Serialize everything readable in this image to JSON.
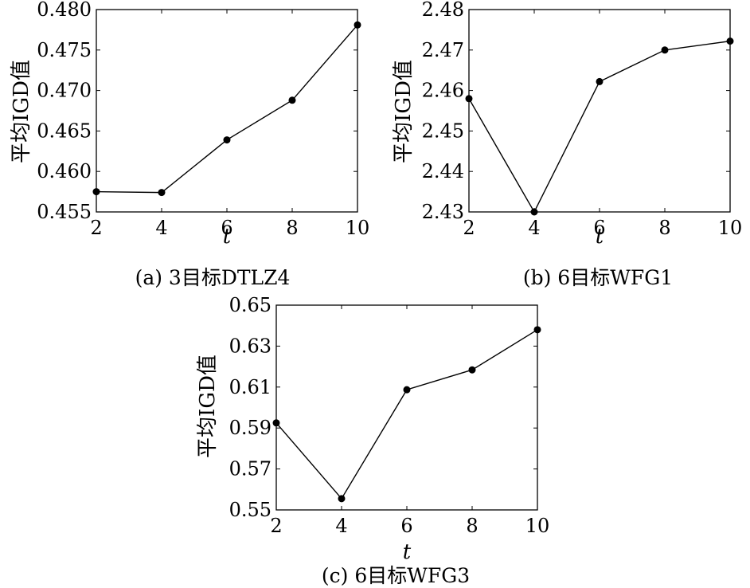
{
  "chart_data": [
    {
      "type": "line",
      "caption": "(a) 3目标DTLZ4",
      "xlabel": "t",
      "ylabel": "平均IGD值",
      "x": [
        2,
        4,
        6,
        8,
        10
      ],
      "series": [
        {
          "values": [
            0.4575,
            0.4574,
            0.4639,
            0.4688,
            0.4781
          ]
        }
      ],
      "xlim": [
        2,
        10
      ],
      "ylim": [
        0.455,
        0.48
      ],
      "xticks": [
        2,
        4,
        6,
        8,
        10
      ],
      "yticks": [
        0.455,
        0.46,
        0.465,
        0.47,
        0.475,
        0.48
      ],
      "xtick_labels": [
        "2",
        "4",
        "6",
        "8",
        "10"
      ],
      "ytick_labels": [
        "0.455",
        "0.460",
        "0.465",
        "0.470",
        "0.475",
        "0.480"
      ],
      "grid": false,
      "marker": "circle",
      "color": "#000000"
    },
    {
      "type": "line",
      "caption": "(b) 6目标WFG1",
      "xlabel": "t",
      "ylabel": "平均IGD值",
      "x": [
        2,
        4,
        6,
        8,
        10
      ],
      "series": [
        {
          "values": [
            2.458,
            2.43,
            2.4622,
            2.47,
            2.4722
          ]
        }
      ],
      "xlim": [
        2,
        10
      ],
      "ylim": [
        2.43,
        2.48
      ],
      "xticks": [
        2,
        4,
        6,
        8,
        10
      ],
      "yticks": [
        2.43,
        2.44,
        2.45,
        2.46,
        2.47,
        2.48
      ],
      "xtick_labels": [
        "2",
        "4",
        "6",
        "8",
        "10"
      ],
      "ytick_labels": [
        "2.43",
        "2.44",
        "2.45",
        "2.46",
        "2.47",
        "2.48"
      ],
      "grid": false,
      "marker": "circle",
      "color": "#000000"
    },
    {
      "type": "line",
      "caption": "(c) 6目标WFG3",
      "xlabel": "t",
      "ylabel": "平均IGD值",
      "x": [
        2,
        4,
        6,
        8,
        10
      ],
      "series": [
        {
          "values": [
            0.5925,
            0.5555,
            0.6087,
            0.6184,
            0.638
          ]
        }
      ],
      "xlim": [
        2,
        10
      ],
      "ylim": [
        0.55,
        0.65
      ],
      "xticks": [
        2,
        4,
        6,
        8,
        10
      ],
      "yticks": [
        0.55,
        0.57,
        0.59,
        0.61,
        0.63,
        0.65
      ],
      "xtick_labels": [
        "2",
        "4",
        "6",
        "8",
        "10"
      ],
      "ytick_labels": [
        "0.55",
        "0.57",
        "0.59",
        "0.61",
        "0.63",
        "0.65"
      ],
      "grid": false,
      "marker": "circle",
      "color": "#000000"
    }
  ]
}
